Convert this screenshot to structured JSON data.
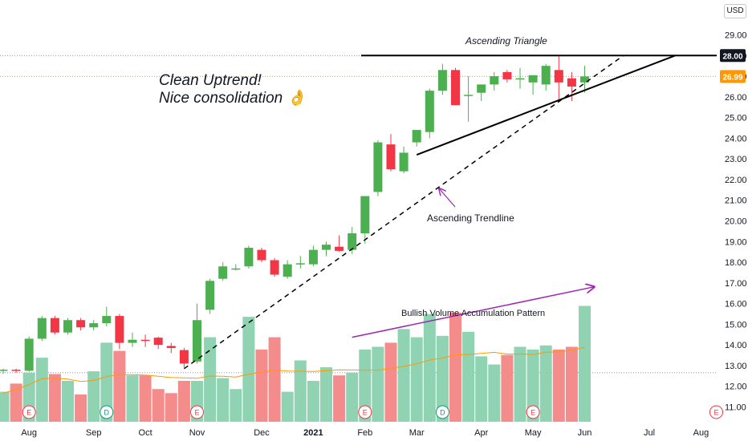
{
  "currency": "USD",
  "notes": {
    "uptrend_line1": "Clean Uptrend!",
    "uptrend_line2": "Nice consolidation 👌",
    "triangle": "Ascending Triangle",
    "trendline": "Ascending Trendline",
    "volume": "Bullish Volume Accumulation Pattern"
  },
  "colors": {
    "up": "#4caf50",
    "down": "#f23645",
    "vol_up": "#8fd3b3",
    "vol_down": "#f58c8c",
    "triangle_line": "#000000",
    "arrow": "#9c27b0",
    "current_price_line": "#ff9800",
    "ma_line": "#ff9800"
  },
  "chart_data": {
    "type": "candlestick",
    "yaxis_ticks": [
      "11.00",
      "12.00",
      "13.00",
      "14.00",
      "15.00",
      "16.00",
      "17.00",
      "18.00",
      "19.00",
      "20.00",
      "21.00",
      "22.00",
      "23.00",
      "24.00",
      "25.00",
      "26.00",
      "27.00",
      "28.00",
      "29.00"
    ],
    "ylim": [
      10.4,
      30.0
    ],
    "price_badges": [
      {
        "label": "28.00",
        "value": 28.0
      },
      {
        "label": "26.99",
        "value": 26.99
      }
    ],
    "xaxis_ticks": [
      {
        "label": "Aug",
        "i": 2
      },
      {
        "label": "Sep",
        "i": 7
      },
      {
        "label": "Oct",
        "i": 11
      },
      {
        "label": "Nov",
        "i": 15
      },
      {
        "label": "Dec",
        "i": 20
      },
      {
        "label": "2021",
        "i": 24
      },
      {
        "label": "Feb",
        "i": 28
      },
      {
        "label": "Mar",
        "i": 32
      },
      {
        "label": "Apr",
        "i": 37
      },
      {
        "label": "May",
        "i": 41
      },
      {
        "label": "Jun",
        "i": 45
      },
      {
        "label": "Jul",
        "i": 50
      },
      {
        "label": "Aug",
        "i": 54
      }
    ],
    "ohlc": [
      [
        12.75,
        12.85,
        12.6,
        12.8
      ],
      [
        12.8,
        12.85,
        12.65,
        12.75
      ],
      [
        12.75,
        14.4,
        12.7,
        14.3
      ],
      [
        14.3,
        15.4,
        14.2,
        15.3
      ],
      [
        15.3,
        15.4,
        14.5,
        14.6
      ],
      [
        14.6,
        15.3,
        14.5,
        15.2
      ],
      [
        15.2,
        15.3,
        14.7,
        14.85
      ],
      [
        14.85,
        15.2,
        14.7,
        15.05
      ],
      [
        15.05,
        15.85,
        14.9,
        15.4
      ],
      [
        15.4,
        15.5,
        13.8,
        14.1
      ],
      [
        14.1,
        14.6,
        13.9,
        14.25
      ],
      [
        14.25,
        14.5,
        13.9,
        14.2
      ],
      [
        14.35,
        14.4,
        13.8,
        14.0
      ],
      [
        13.95,
        14.1,
        13.6,
        13.85
      ],
      [
        13.75,
        13.85,
        12.9,
        13.1
      ],
      [
        13.2,
        16.0,
        13.1,
        15.2
      ],
      [
        15.7,
        17.2,
        15.5,
        17.1
      ],
      [
        17.2,
        18.0,
        17.1,
        17.8
      ],
      [
        17.7,
        17.9,
        17.6,
        17.7
      ],
      [
        17.8,
        18.8,
        17.7,
        18.7
      ],
      [
        18.6,
        18.7,
        18.0,
        18.1
      ],
      [
        18.1,
        18.2,
        17.3,
        17.4
      ],
      [
        17.3,
        18.1,
        17.2,
        17.9
      ],
      [
        17.9,
        18.3,
        17.7,
        17.95
      ],
      [
        17.9,
        18.8,
        17.8,
        18.6
      ],
      [
        18.6,
        19.0,
        18.3,
        18.85
      ],
      [
        18.75,
        19.3,
        18.5,
        18.55
      ],
      [
        18.6,
        19.7,
        18.4,
        19.4
      ],
      [
        19.4,
        21.2,
        18.9,
        21.2
      ],
      [
        21.4,
        23.9,
        21.2,
        23.8
      ],
      [
        23.7,
        24.2,
        22.4,
        22.5
      ],
      [
        22.4,
        23.6,
        22.3,
        23.3
      ],
      [
        23.8,
        24.3,
        23.6,
        24.4
      ],
      [
        24.3,
        26.4,
        24.0,
        26.3
      ],
      [
        26.3,
        27.6,
        26.1,
        27.3
      ],
      [
        27.3,
        27.4,
        25.6,
        25.6
      ],
      [
        26.1,
        27.0,
        24.8,
        26.1
      ],
      [
        26.2,
        26.6,
        25.8,
        26.6
      ],
      [
        26.6,
        27.2,
        26.3,
        27.0
      ],
      [
        27.2,
        27.3,
        26.7,
        26.85
      ],
      [
        26.85,
        27.4,
        26.4,
        26.9
      ],
      [
        26.7,
        27.0,
        26.1,
        27.05
      ],
      [
        26.6,
        27.6,
        26.3,
        27.5
      ],
      [
        27.3,
        28.0,
        25.8,
        26.7
      ],
      [
        26.9,
        27.2,
        25.8,
        26.5
      ],
      [
        26.7,
        27.5,
        26.2,
        26.99
      ]
    ],
    "volume_rel": [
      0.22,
      0.28,
      0.36,
      0.47,
      0.35,
      0.3,
      0.2,
      0.37,
      0.58,
      0.52,
      0.34,
      0.34,
      0.24,
      0.21,
      0.3,
      0.3,
      0.62,
      0.32,
      0.24,
      0.77,
      0.53,
      0.62,
      0.22,
      0.45,
      0.3,
      0.4,
      0.34,
      0.36,
      0.53,
      0.55,
      0.58,
      0.68,
      0.62,
      0.79,
      0.63,
      0.8,
      0.66,
      0.48,
      0.42,
      0.49,
      0.55,
      0.53,
      0.56,
      0.53,
      0.55,
      0.85
    ],
    "events": [
      {
        "label": "E",
        "i": 2,
        "type": "earnings"
      },
      {
        "label": "D",
        "i": 8,
        "type": "dividend"
      },
      {
        "label": "E",
        "i": 15,
        "type": "earnings"
      },
      {
        "label": "E",
        "i": 28,
        "type": "earnings"
      },
      {
        "label": "D",
        "i": 34,
        "type": "dividend"
      },
      {
        "label": "E",
        "i": 41,
        "type": "earnings"
      },
      {
        "label": "E",
        "i": 55,
        "type": "earnings"
      }
    ],
    "triangle_resistance": 28.0,
    "triangle_support": {
      "from_i": 32,
      "from_v": 23.2,
      "to_i": 52,
      "to_v": 28.0
    },
    "trendline": {
      "from_i": 14,
      "from_v": 12.85,
      "to_i": 48,
      "to_v": 28.0
    },
    "volume_trend": {
      "from_i": 27,
      "from_rel": 0.62,
      "to_i": 45,
      "to_rel": 0.99
    }
  }
}
